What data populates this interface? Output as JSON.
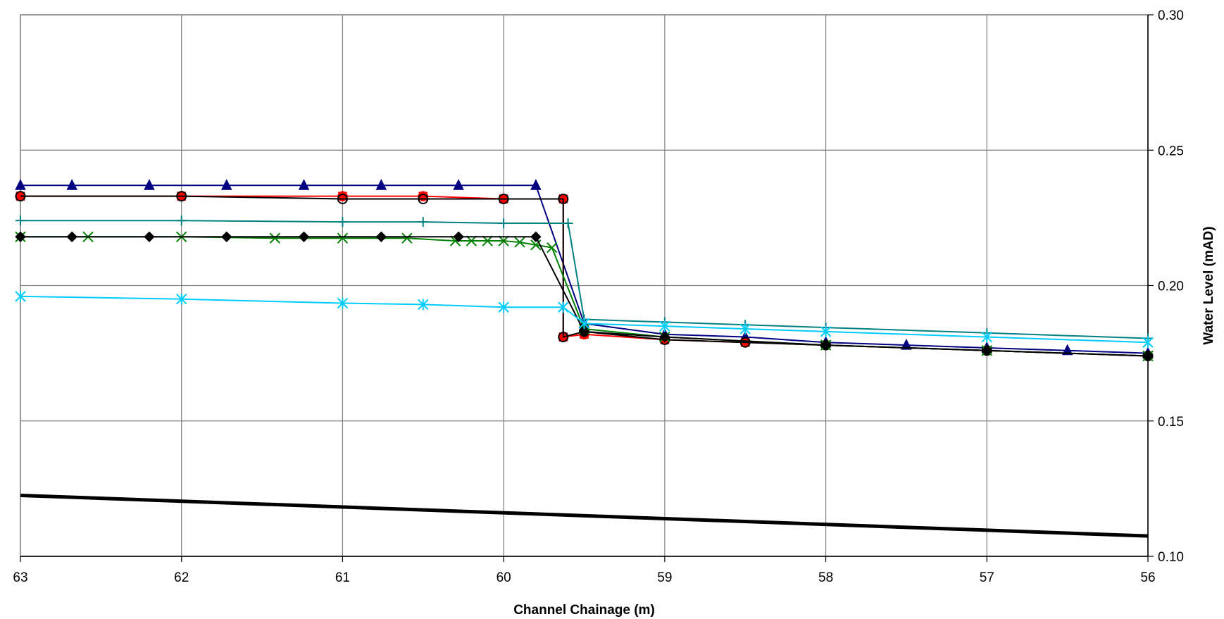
{
  "chart_data": {
    "type": "line",
    "title": "",
    "xlabel": "Channel Chainage (m)",
    "ylabel": "Water Level (mAD)",
    "xlim": [
      63,
      56
    ],
    "ylim": [
      0.1,
      0.3
    ],
    "x_reversed": true,
    "y_axis_side": "right",
    "grid": true,
    "legend": "none",
    "x_ticks": [
      "63",
      "62",
      "61",
      "60",
      "59",
      "58",
      "57",
      "56"
    ],
    "y_ticks": [
      "0.10",
      "0.15",
      "0.20",
      "0.25",
      "0.30"
    ],
    "series": [
      {
        "color": "#000080",
        "marker": "triangle",
        "points": [
          [
            63,
            0.237
          ],
          [
            62.68,
            0.237
          ],
          [
            62.2,
            0.237
          ],
          [
            61.72,
            0.237
          ],
          [
            61.24,
            0.237
          ],
          [
            60.76,
            0.237
          ],
          [
            60.28,
            0.237
          ],
          [
            59.8,
            0.237
          ],
          [
            59.5,
            0.186
          ],
          [
            59.0,
            0.182
          ],
          [
            58.5,
            0.181
          ],
          [
            58.0,
            0.179
          ],
          [
            57.5,
            0.178
          ],
          [
            57.0,
            0.177
          ],
          [
            56.5,
            0.176
          ],
          [
            56.0,
            0.175
          ]
        ]
      },
      {
        "color": "#ff0000",
        "marker": "x-circle",
        "points": [
          [
            63,
            0.233
          ],
          [
            62,
            0.233
          ],
          [
            61,
            0.233
          ],
          [
            60.5,
            0.233
          ],
          [
            60,
            0.232
          ],
          [
            59.63,
            0.232
          ],
          [
            59.63,
            0.181
          ],
          [
            59.5,
            0.182
          ],
          [
            59.0,
            0.18
          ],
          [
            58.5,
            0.179
          ],
          [
            58.0,
            0.178
          ],
          [
            57.0,
            0.176
          ],
          [
            56.0,
            0.174
          ]
        ]
      },
      {
        "color": "#000000",
        "marker": "circle",
        "points": [
          [
            63,
            0.233
          ],
          [
            62,
            0.233
          ],
          [
            61,
            0.232
          ],
          [
            60.5,
            0.232
          ],
          [
            60,
            0.232
          ],
          [
            59.63,
            0.232
          ],
          [
            59.63,
            0.181
          ],
          [
            59.5,
            0.183
          ],
          [
            59.0,
            0.18
          ],
          [
            58.5,
            0.179
          ],
          [
            58.0,
            0.178
          ],
          [
            57.0,
            0.176
          ],
          [
            56.0,
            0.174
          ]
        ]
      },
      {
        "color": "#008080",
        "marker": "plus",
        "points": [
          [
            63,
            0.224
          ],
          [
            62,
            0.224
          ],
          [
            61,
            0.2235
          ],
          [
            60.5,
            0.2235
          ],
          [
            60,
            0.223
          ],
          [
            59.6,
            0.223
          ],
          [
            59.5,
            0.1875
          ],
          [
            59.0,
            0.1865
          ],
          [
            58.5,
            0.1855
          ],
          [
            58.0,
            0.1845
          ],
          [
            57.0,
            0.1825
          ],
          [
            56.0,
            0.1805
          ]
        ]
      },
      {
        "color": "#008000",
        "marker": "x",
        "points": [
          [
            63,
            0.218
          ],
          [
            62.58,
            0.218
          ],
          [
            62,
            0.218
          ],
          [
            61.42,
            0.2175
          ],
          [
            61,
            0.2175
          ],
          [
            60.6,
            0.2175
          ],
          [
            60.3,
            0.2165
          ],
          [
            60.2,
            0.2165
          ],
          [
            60.1,
            0.2165
          ],
          [
            60.0,
            0.2165
          ],
          [
            59.9,
            0.216
          ],
          [
            59.8,
            0.215
          ],
          [
            59.7,
            0.214
          ],
          [
            59.5,
            0.184
          ],
          [
            59.0,
            0.181
          ],
          [
            58.0,
            0.178
          ],
          [
            57.0,
            0.176
          ],
          [
            56.0,
            0.174
          ]
        ]
      },
      {
        "color": "#000000",
        "marker": "diamond",
        "points": [
          [
            63,
            0.218
          ],
          [
            62.68,
            0.218
          ],
          [
            62.2,
            0.218
          ],
          [
            61.72,
            0.218
          ],
          [
            61.24,
            0.218
          ],
          [
            60.76,
            0.218
          ],
          [
            60.28,
            0.218
          ],
          [
            59.8,
            0.218
          ],
          [
            59.5,
            0.183
          ],
          [
            59.0,
            0.181
          ],
          [
            58.0,
            0.178
          ],
          [
            57.0,
            0.176
          ],
          [
            56.0,
            0.174
          ]
        ]
      },
      {
        "color": "#00ccff",
        "marker": "star",
        "points": [
          [
            63,
            0.196
          ],
          [
            62,
            0.195
          ],
          [
            61,
            0.1935
          ],
          [
            60.5,
            0.193
          ],
          [
            60,
            0.192
          ],
          [
            59.63,
            0.192
          ],
          [
            59.5,
            0.186
          ],
          [
            59.0,
            0.185
          ],
          [
            58.5,
            0.184
          ],
          [
            58.0,
            0.183
          ],
          [
            57.0,
            0.181
          ],
          [
            56.0,
            0.179
          ]
        ]
      },
      {
        "color": "#000000",
        "marker": "none",
        "thick": true,
        "points": [
          [
            63,
            0.1225
          ],
          [
            56,
            0.1075
          ]
        ]
      }
    ]
  }
}
